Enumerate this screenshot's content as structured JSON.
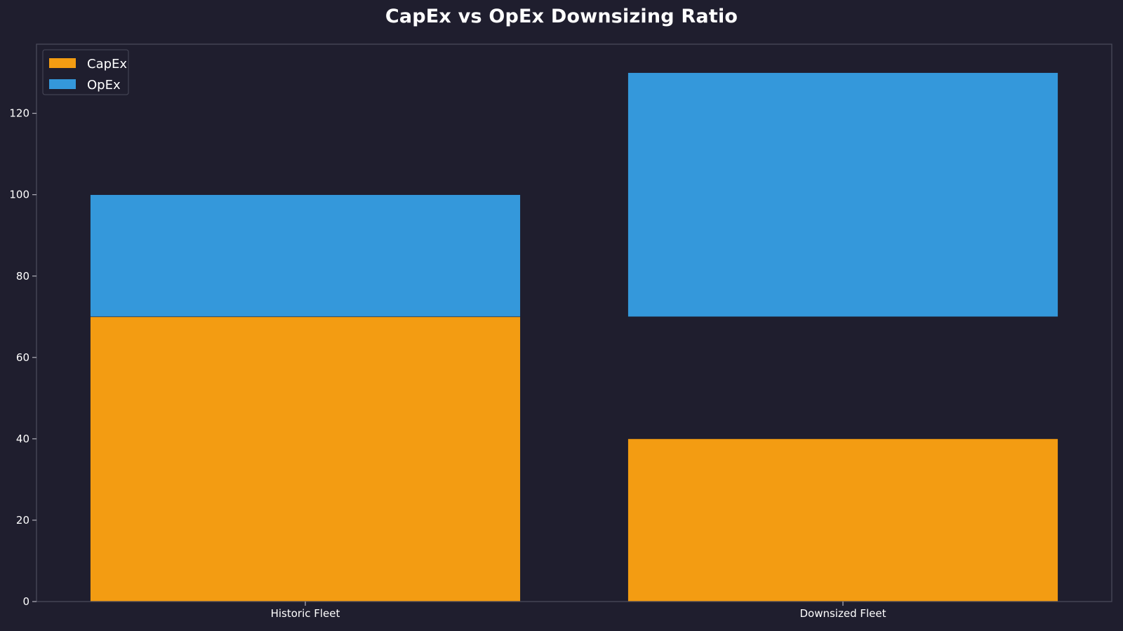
{
  "chart_data": {
    "type": "bar",
    "title": "CapEx vs OpEx Downsizing Ratio",
    "xlabel": "",
    "ylabel": "",
    "categories": [
      "Historic Fleet",
      "Downsized Fleet"
    ],
    "series": [
      {
        "name": "CapEx",
        "color": "#f39c12",
        "values": [
          70,
          40
        ],
        "bottoms": [
          0,
          0
        ]
      },
      {
        "name": "OpEx",
        "color": "#3498db",
        "values": [
          30,
          60
        ],
        "bottoms": [
          70,
          70
        ]
      }
    ],
    "ylim": [
      0,
      137
    ],
    "yticks": [
      0,
      20,
      40,
      60,
      80,
      100,
      120
    ],
    "legend": "top-left",
    "grid": false,
    "background": "#1f1e2e",
    "axis_color": "#4a4a5a"
  }
}
